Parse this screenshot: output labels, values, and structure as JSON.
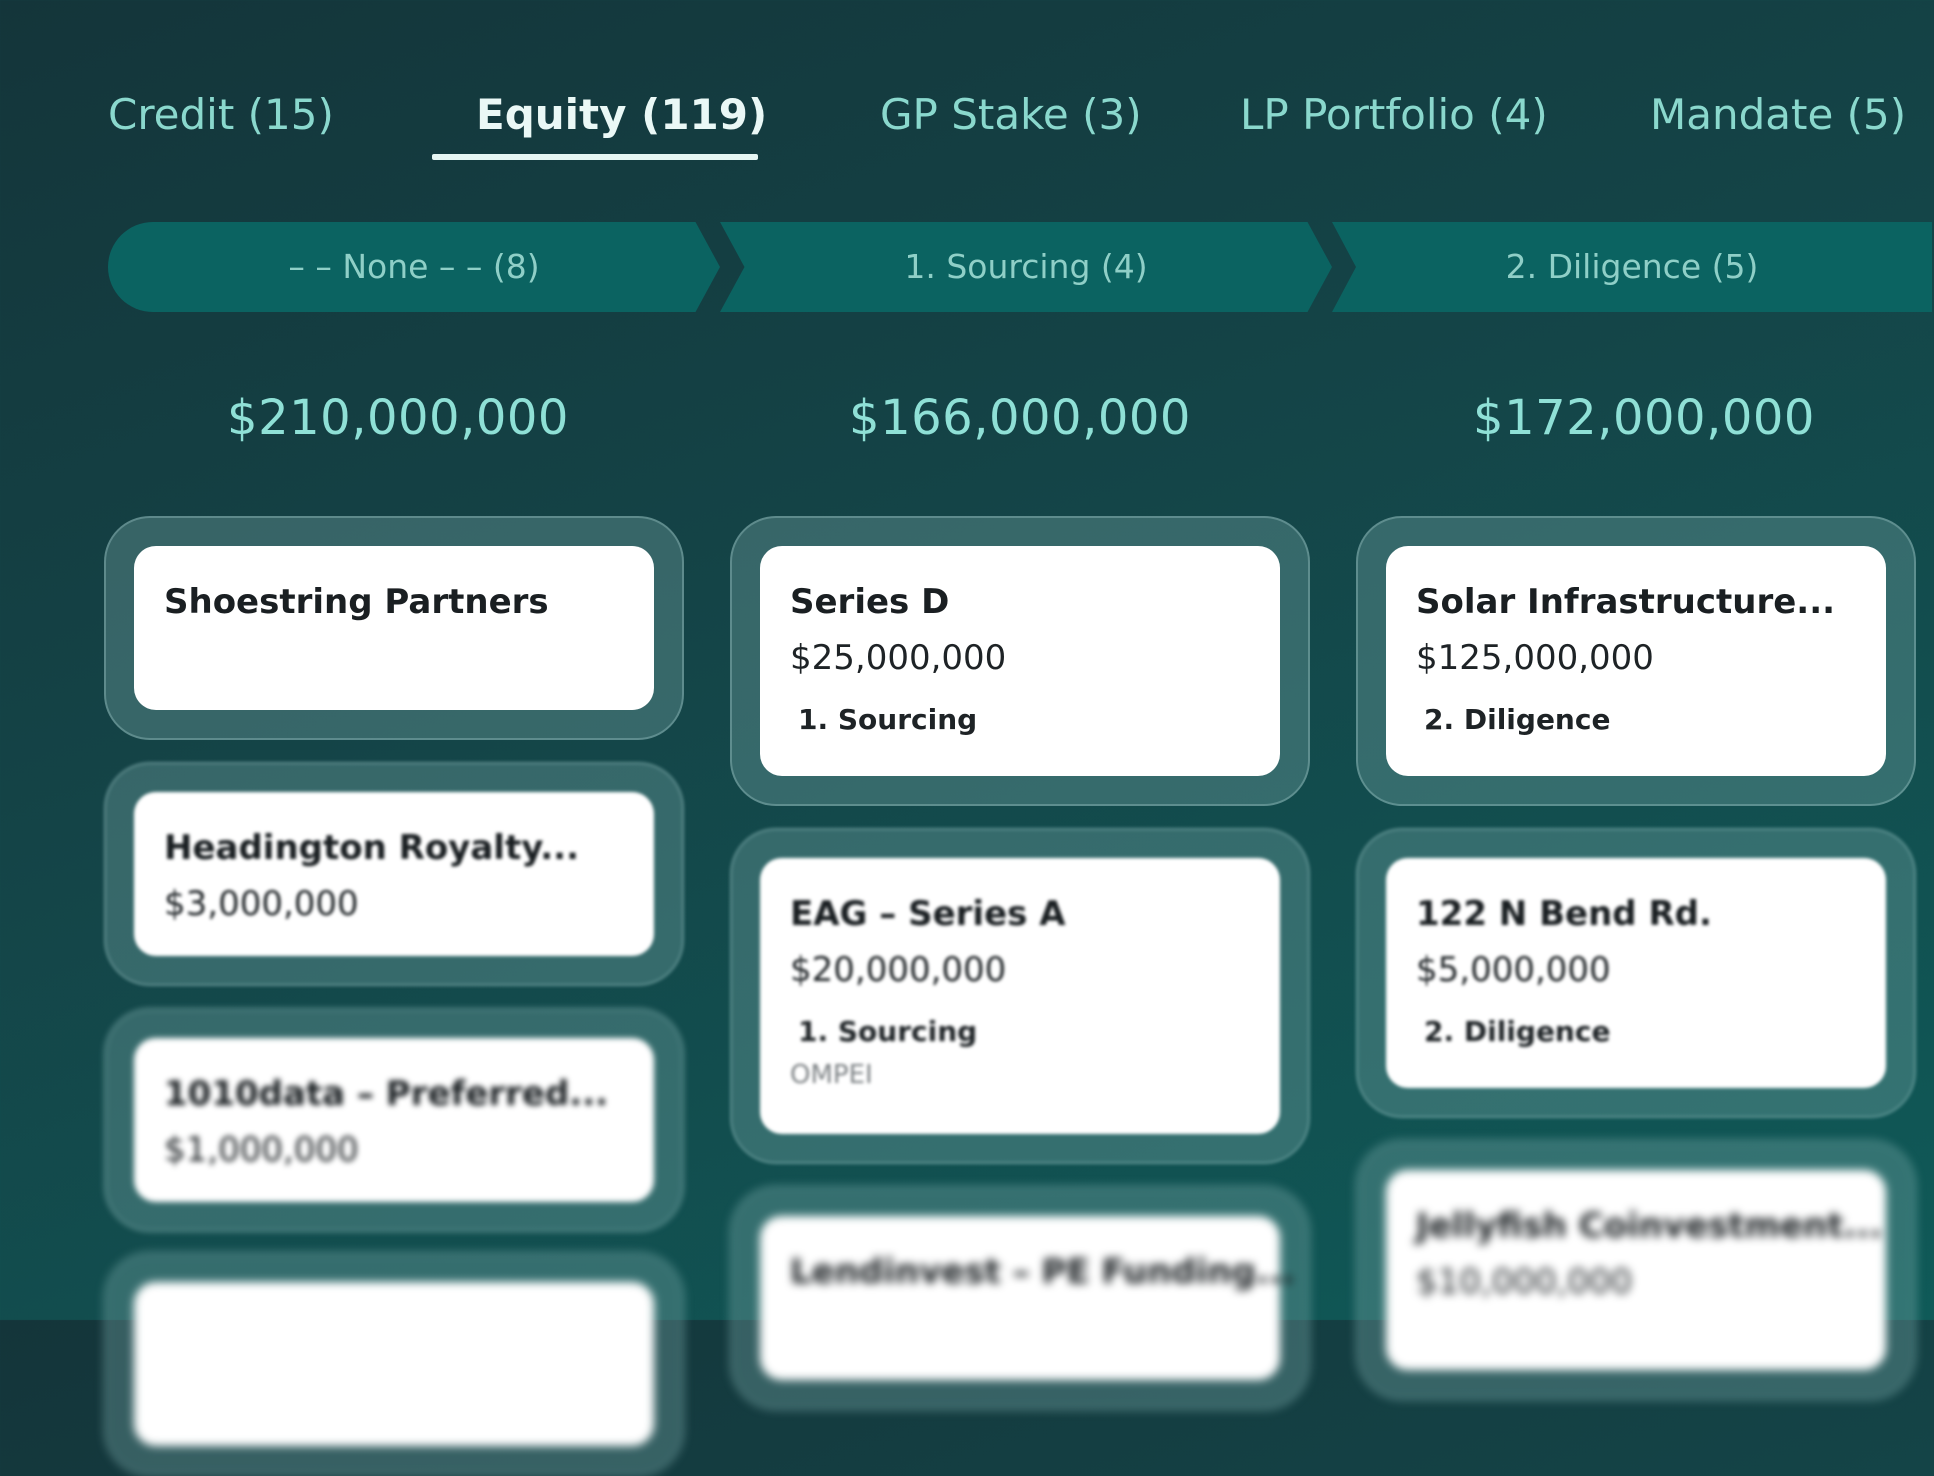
{
  "tabs": [
    {
      "label": "Credit (15)"
    },
    {
      "label": "Equity (119)"
    },
    {
      "label": "GP Stake (3)"
    },
    {
      "label": "LP Portfolio (4)"
    },
    {
      "label": "Mandate (5)"
    }
  ],
  "stages": [
    {
      "label": "– – None – – (8)",
      "total": "$210,000,000"
    },
    {
      "label": "1. Sourcing (4)",
      "total": "$166,000,000"
    },
    {
      "label": "2. Diligence (5)",
      "total": "$172,000,000"
    }
  ],
  "columns": [
    {
      "cards": [
        {
          "title": "Shoestring Partners"
        },
        {
          "title": "Headington Royalty...",
          "amount": "$3,000,000"
        },
        {
          "title": "1010data – Preferred...",
          "amount": "$1,000,000"
        }
      ]
    },
    {
      "cards": [
        {
          "title": "Series D",
          "amount": "$25,000,000",
          "stage": "1. Sourcing"
        },
        {
          "title": "EAG – Series A",
          "amount": "$20,000,000",
          "stage": "1. Sourcing",
          "meta": "OMPEI"
        },
        {
          "title": "Lendinvest – PE Funding..."
        }
      ]
    },
    {
      "cards": [
        {
          "title": "Solar Infrastructure...",
          "amount": "$125,000,000",
          "stage": "2. Diligence"
        },
        {
          "title": "122 N Bend Rd.",
          "amount": "$5,000,000",
          "stage": "2. Diligence"
        },
        {
          "title": "Jellyfish Coinvestment...",
          "amount": "$10,000,000"
        }
      ]
    }
  ],
  "colors": {
    "accent": "#0b6361",
    "tab_text": "#8ad8cd",
    "card_bg": "#ffffff"
  }
}
